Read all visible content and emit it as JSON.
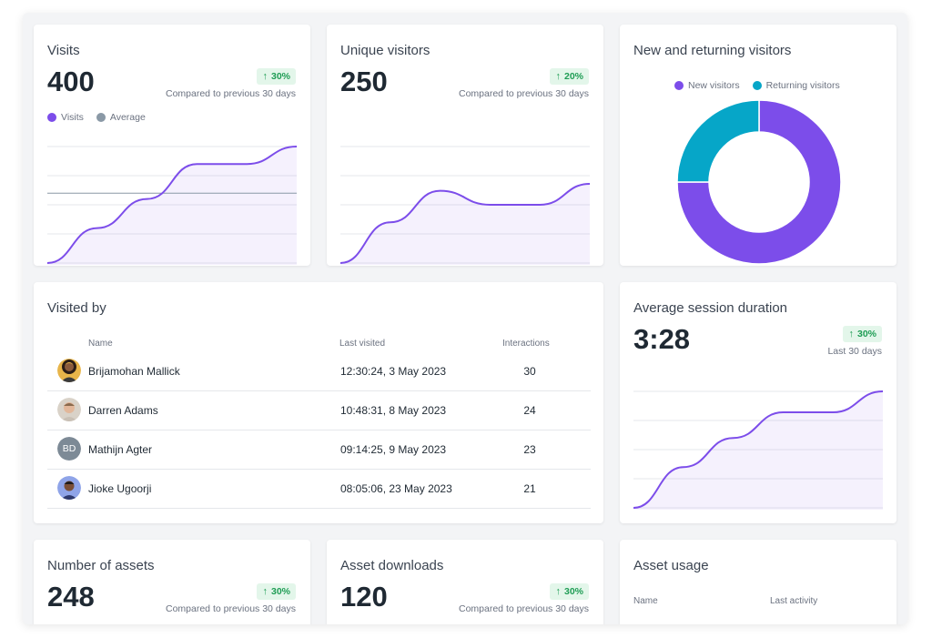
{
  "visits": {
    "title": "Visits",
    "value": "400",
    "badge": "30%",
    "compare": "Compared to previous 30 days",
    "legend": [
      {
        "label": "Visits",
        "color": "#7c4dea"
      },
      {
        "label": "Average",
        "color": "#8a99a6"
      }
    ],
    "chart_data": {
      "type": "area",
      "series": [
        {
          "name": "Visits",
          "values": [
            0,
            30,
            55,
            85,
            85,
            100
          ]
        }
      ],
      "average": 60,
      "ylim": [
        0,
        100
      ]
    }
  },
  "unique": {
    "title": "Unique visitors",
    "value": "250",
    "badge": "20%",
    "compare": "Compared to previous 30 days",
    "chart_data": {
      "type": "area",
      "values": [
        0,
        35,
        62,
        50,
        50,
        68
      ],
      "ylim": [
        0,
        100
      ]
    }
  },
  "returning": {
    "title": "New and returning visitors",
    "legend": [
      {
        "label": "New visitors",
        "color": "#7c4dea"
      },
      {
        "label": "Returning visitors",
        "color": "#06a6c8"
      }
    ],
    "chart_data": {
      "type": "pie",
      "labels": [
        "New visitors",
        "Returning visitors"
      ],
      "values": [
        75,
        25
      ],
      "colors": [
        "#7c4dea",
        "#06a6c8"
      ]
    }
  },
  "visited_by": {
    "title": "Visited by",
    "columns": [
      "Name",
      "Last visited",
      "Interactions"
    ],
    "rows": [
      {
        "name": "Brijamohan Mallick",
        "when": "12:30:24, 3 May 2023",
        "count": "30"
      },
      {
        "name": "Darren Adams",
        "when": "10:48:31, 8 May 2023",
        "count": "24"
      },
      {
        "name": "Mathijn Agter",
        "initials": "BD",
        "when": "09:14:25, 9 May 2023",
        "count": "23"
      },
      {
        "name": "Jioke Ugoorji",
        "when": "08:05:06, 23 May 2023",
        "count": "21"
      }
    ]
  },
  "session": {
    "title": "Average session duration",
    "value": "3:28",
    "badge": "30%",
    "compare": "Last 30 days",
    "chart_data": {
      "type": "area",
      "values": [
        0,
        35,
        60,
        82,
        82,
        100
      ],
      "ylim": [
        0,
        100
      ]
    }
  },
  "assets": {
    "title": "Number of assets",
    "value": "248",
    "badge": "30%",
    "compare": "Compared to previous 30 days"
  },
  "downloads": {
    "title": "Asset downloads",
    "value": "120",
    "badge": "30%",
    "compare": "Compared to previous 30 days"
  },
  "usage": {
    "title": "Asset usage",
    "columns": [
      "Name",
      "Last activity"
    ]
  }
}
